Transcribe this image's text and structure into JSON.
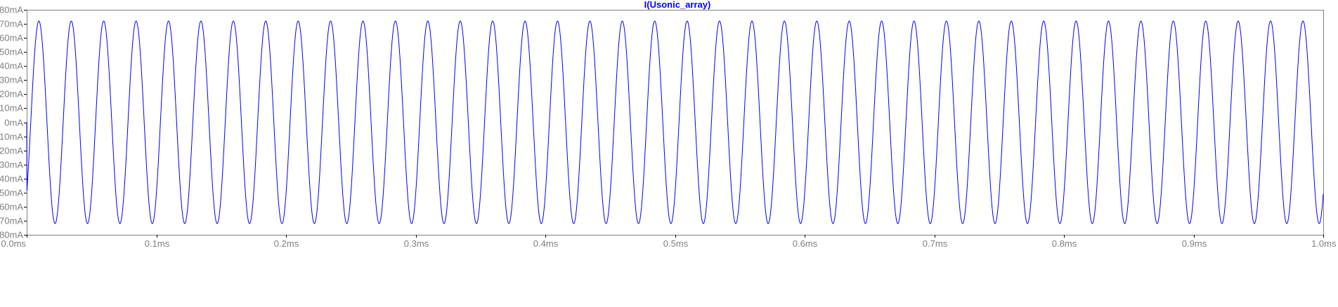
{
  "chart_data": {
    "type": "line",
    "title": "I(Usonic_array)",
    "xlabel": "",
    "ylabel": "",
    "x_unit": "ms",
    "y_unit": "mA",
    "xlim": [
      0.0,
      1.0
    ],
    "ylim": [
      -80,
      80
    ],
    "x_ticks": [
      0.0,
      0.1,
      0.2,
      0.3,
      0.4,
      0.5,
      0.6,
      0.7,
      0.8,
      0.9,
      1.0
    ],
    "x_tick_labels": [
      "0.0ms",
      "0.1ms",
      "0.2ms",
      "0.3ms",
      "0.4ms",
      "0.5ms",
      "0.6ms",
      "0.7ms",
      "0.8ms",
      "0.9ms",
      "1.0ms"
    ],
    "y_ticks": [
      80,
      70,
      60,
      50,
      40,
      30,
      20,
      10,
      0,
      -10,
      -20,
      -30,
      -40,
      -50,
      -60,
      -70,
      -80
    ],
    "y_tick_labels": [
      "80mA",
      "70mA",
      "60mA",
      "50mA",
      "40mA",
      "30mA",
      "20mA",
      "10mA",
      "0mA",
      "-10mA",
      "-20mA",
      "-30mA",
      "-40mA",
      "-50mA",
      "-60mA",
      "-70mA",
      "-80mA"
    ],
    "grid": false,
    "series": [
      {
        "name": "I(Usonic_array)",
        "waveform": "sine",
        "frequency_khz": 40,
        "amplitude_ma": 72,
        "offset_ma": 0,
        "phase_deg": -45
      }
    ],
    "colors": {
      "trace": "#0000ff",
      "title": "#0000ff",
      "axis": "#000000",
      "tick_label": "#808080",
      "background": "#ffffff"
    }
  }
}
